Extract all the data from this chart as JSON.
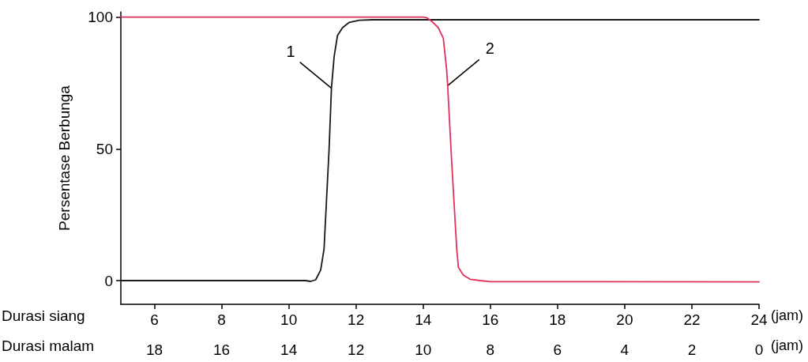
{
  "chart_data": {
    "type": "line",
    "ylabel": "Persentase Berbunga",
    "xlabel": "Durasi siang",
    "x2label": "Durasi malam",
    "xlim": [
      5,
      24
    ],
    "xticks": [
      6,
      8,
      10,
      12,
      14,
      16,
      18,
      20,
      22,
      24
    ],
    "x2lim": [
      19,
      0
    ],
    "x2ticks": [
      18,
      16,
      14,
      12,
      10,
      8,
      6,
      4,
      2,
      0
    ],
    "ylim": [
      -9,
      102
    ],
    "yticks": [
      0,
      50,
      100
    ],
    "series": [
      {
        "color": "#1a1a1a",
        "x": [
          5,
          10.3,
          10.5,
          10.65,
          10.8,
          10.95,
          11.05,
          11.2,
          11.27,
          11.35,
          11.45,
          11.6,
          11.8,
          12.1,
          12.5,
          24
        ],
        "values": [
          0,
          0,
          0,
          -0.3,
          0.3,
          4,
          12,
          50,
          73,
          85,
          93,
          96,
          98,
          98.8,
          99,
          99
        ]
      },
      {
        "color": "#e0325a",
        "x": [
          5,
          14,
          14.1,
          14.25,
          14.45,
          14.6,
          14.7,
          14.73,
          14.85,
          15,
          15.05,
          15.2,
          15.4,
          15.7,
          16,
          24
        ],
        "values": [
          100,
          100,
          99.8,
          98.5,
          96,
          92,
          80,
          74,
          45,
          12,
          5,
          2,
          0.5,
          0,
          -0.4,
          -0.5
        ]
      }
    ],
    "annotations": [
      {
        "text": "1",
        "x": 11.27,
        "y": 73
      },
      {
        "text": "2",
        "x": 14.73,
        "y": 74
      },
      "(jam)",
      "(jam)"
    ],
    "grid": false,
    "marker": "none",
    "line_style": "solid"
  }
}
